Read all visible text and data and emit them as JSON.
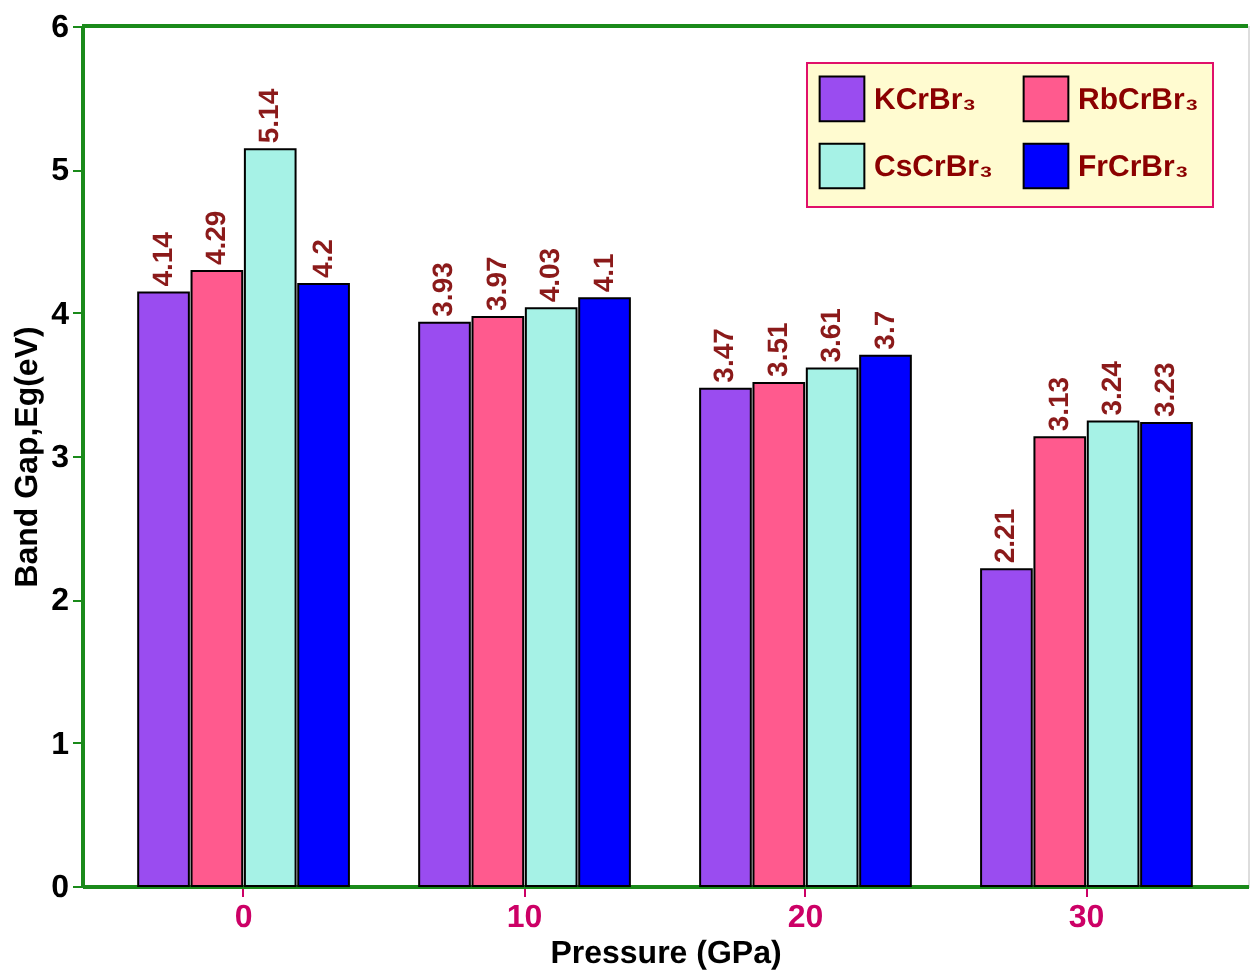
{
  "chart_data": {
    "type": "bar",
    "categories": [
      "0",
      "10",
      "20",
      "30"
    ],
    "xlabel": "Pressure (GPa)",
    "ylabel": "Band Gap,Eg(eV)",
    "series": [
      {
        "name": "KCrBr₃",
        "color": "#9a4cf0",
        "values": [
          4.14,
          3.93,
          3.47,
          2.21
        ]
      },
      {
        "name": "RbCrBr₃",
        "color": "#ff5a8e",
        "values": [
          4.29,
          3.97,
          3.51,
          3.13
        ]
      },
      {
        "name": "CsCrBr₃",
        "color": "#a6f2e6",
        "values": [
          5.14,
          4.03,
          3.61,
          3.24
        ]
      },
      {
        "name": "FrCrBr₃",
        "color": "#0000ff",
        "values": [
          4.2,
          4.1,
          3.7,
          3.23
        ]
      }
    ],
    "ylim": [
      0,
      6
    ],
    "yticks": [
      0,
      1,
      2,
      3,
      4,
      5,
      6
    ],
    "grid": false,
    "legend": "top right",
    "data_labels": true
  }
}
